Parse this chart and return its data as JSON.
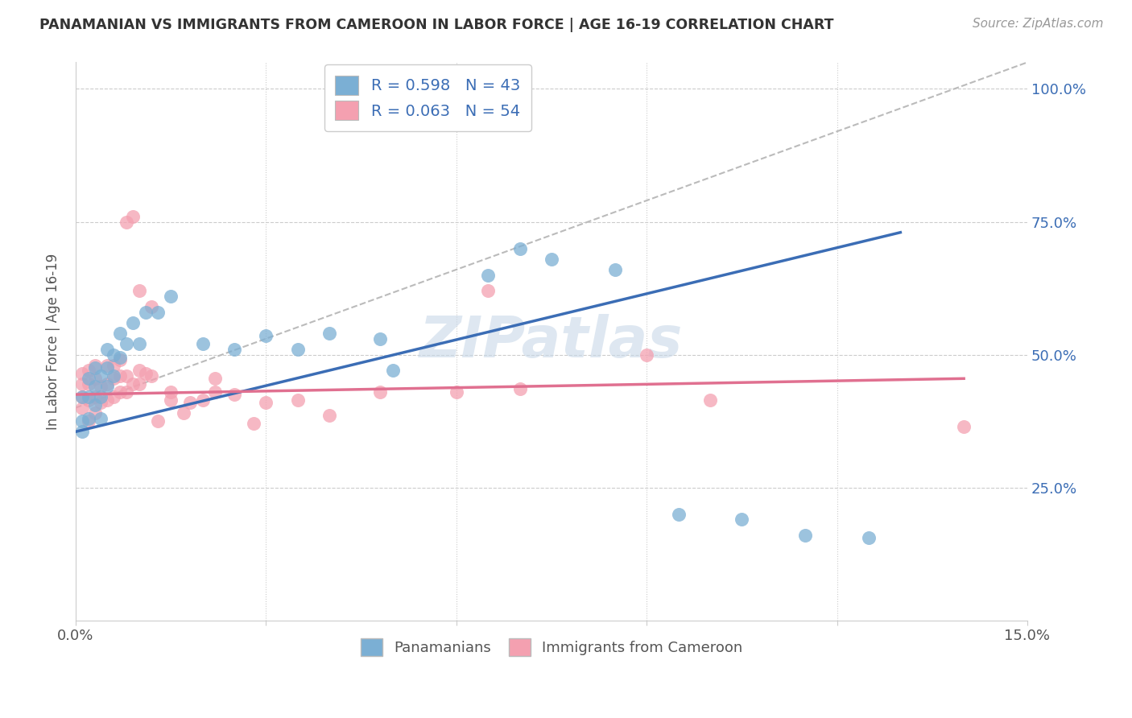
{
  "title": "PANAMANIAN VS IMMIGRANTS FROM CAMEROON IN LABOR FORCE | AGE 16-19 CORRELATION CHART",
  "source": "Source: ZipAtlas.com",
  "ylabel": "In Labor Force | Age 16-19",
  "xlim": [
    0.0,
    0.15
  ],
  "ylim": [
    0.0,
    1.05
  ],
  "ytick_positions": [
    0.0,
    0.25,
    0.5,
    0.75,
    1.0
  ],
  "ytick_labels": [
    "",
    "25.0%",
    "50.0%",
    "75.0%",
    "100.0%"
  ],
  "xtick_positions": [
    0.0,
    0.03,
    0.06,
    0.09,
    0.12,
    0.15
  ],
  "xtick_labels": [
    "0.0%",
    "",
    "",
    "",
    "",
    "15.0%"
  ],
  "blue_R": 0.598,
  "blue_N": 43,
  "pink_R": 0.063,
  "pink_N": 54,
  "blue_color": "#7BAFD4",
  "pink_color": "#F4A0B0",
  "blue_line_color": "#3B6DB5",
  "pink_line_color": "#E07090",
  "dash_line_color": "#BBBBBB",
  "background_color": "#FFFFFF",
  "watermark_color": "#C8D8E8",
  "blue_scatter_x": [
    0.001,
    0.001,
    0.001,
    0.002,
    0.002,
    0.002,
    0.003,
    0.003,
    0.003,
    0.004,
    0.004,
    0.004,
    0.005,
    0.005,
    0.005,
    0.006,
    0.006,
    0.007,
    0.007,
    0.008,
    0.009,
    0.01,
    0.011,
    0.013,
    0.015,
    0.02,
    0.025,
    0.03,
    0.035,
    0.04,
    0.048,
    0.058,
    0.065,
    0.07,
    0.075,
    0.085,
    0.095,
    0.105,
    0.115,
    0.125,
    0.048,
    0.05,
    0.048
  ],
  "blue_scatter_y": [
    0.355,
    0.375,
    0.42,
    0.38,
    0.42,
    0.455,
    0.405,
    0.44,
    0.475,
    0.38,
    0.42,
    0.46,
    0.44,
    0.475,
    0.51,
    0.46,
    0.5,
    0.495,
    0.54,
    0.52,
    0.56,
    0.52,
    0.58,
    0.58,
    0.61,
    0.52,
    0.51,
    0.535,
    0.51,
    0.54,
    0.98,
    0.99,
    0.65,
    0.7,
    0.68,
    0.66,
    0.2,
    0.19,
    0.16,
    0.155,
    0.53,
    0.47,
    0.99
  ],
  "pink_scatter_x": [
    0.001,
    0.001,
    0.001,
    0.001,
    0.002,
    0.002,
    0.002,
    0.002,
    0.003,
    0.003,
    0.003,
    0.003,
    0.004,
    0.004,
    0.005,
    0.005,
    0.005,
    0.006,
    0.006,
    0.006,
    0.007,
    0.007,
    0.007,
    0.008,
    0.008,
    0.009,
    0.01,
    0.01,
    0.011,
    0.012,
    0.013,
    0.015,
    0.017,
    0.02,
    0.022,
    0.025,
    0.03,
    0.035,
    0.04,
    0.048,
    0.06,
    0.065,
    0.07,
    0.09,
    0.1,
    0.14,
    0.008,
    0.009,
    0.01,
    0.012,
    0.015,
    0.018,
    0.022,
    0.028
  ],
  "pink_scatter_y": [
    0.4,
    0.42,
    0.445,
    0.465,
    0.375,
    0.415,
    0.445,
    0.47,
    0.39,
    0.42,
    0.455,
    0.48,
    0.41,
    0.44,
    0.415,
    0.445,
    0.48,
    0.42,
    0.455,
    0.48,
    0.43,
    0.46,
    0.49,
    0.43,
    0.46,
    0.445,
    0.445,
    0.47,
    0.465,
    0.46,
    0.375,
    0.415,
    0.39,
    0.415,
    0.455,
    0.425,
    0.41,
    0.415,
    0.385,
    0.43,
    0.43,
    0.62,
    0.435,
    0.5,
    0.415,
    0.365,
    0.75,
    0.76,
    0.62,
    0.59,
    0.43,
    0.41,
    0.43,
    0.37
  ],
  "blue_line_x0": 0.0,
  "blue_line_y0": 0.355,
  "blue_line_x1": 0.13,
  "blue_line_y1": 0.73,
  "pink_line_x0": 0.0,
  "pink_line_y0": 0.425,
  "pink_line_x1": 0.14,
  "pink_line_y1": 0.455,
  "dash_line_x0": 0.0,
  "dash_line_y0": 0.4,
  "dash_line_x1": 0.15,
  "dash_line_y1": 1.05
}
